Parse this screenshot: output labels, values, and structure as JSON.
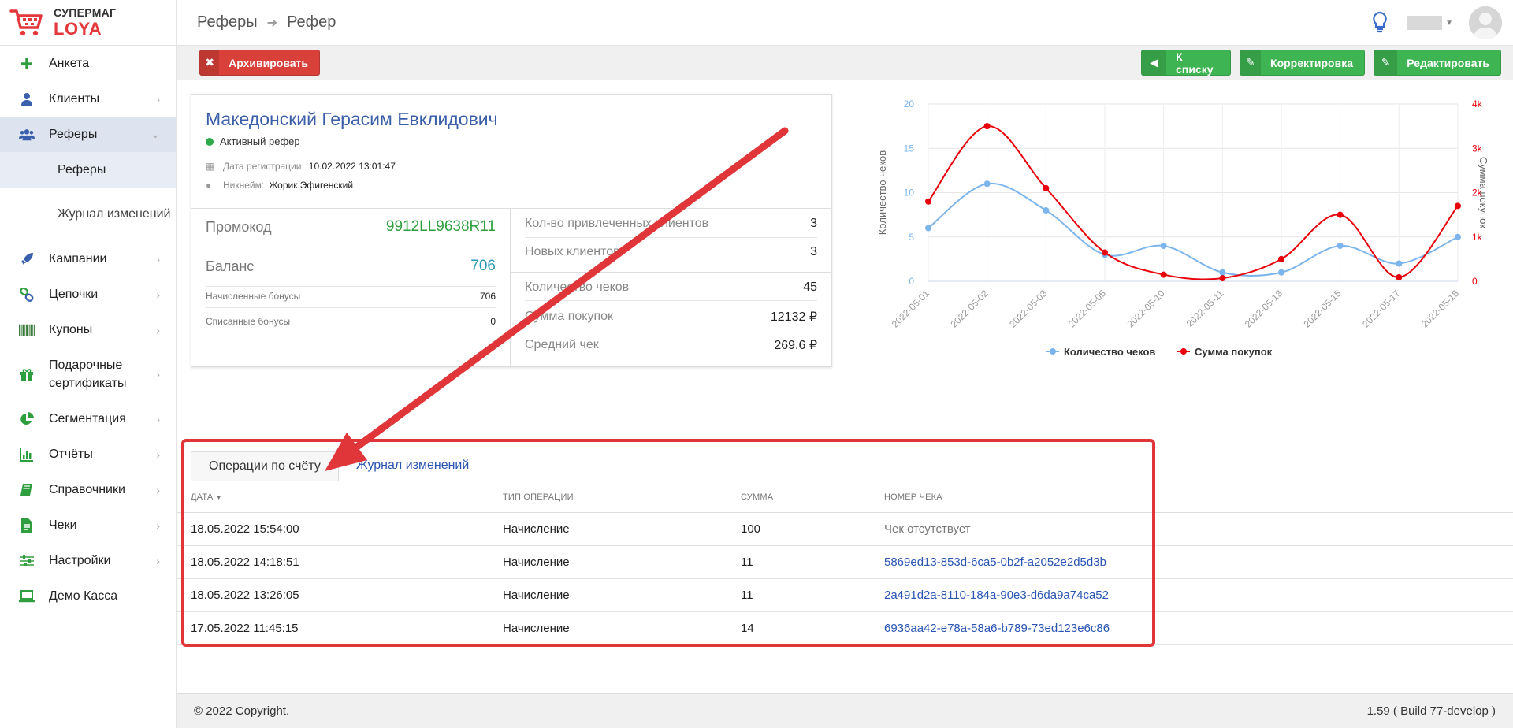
{
  "app": {
    "logo_top": "СУПЕРМАГ",
    "logo_bottom": "LOYA"
  },
  "breadcrumb": {
    "parent": "Реферы",
    "current": "Рефер"
  },
  "sidebar": {
    "items": [
      {
        "label": "Анкета",
        "icon": "plus-icon"
      },
      {
        "label": "Клиенты",
        "icon": "user-icon"
      },
      {
        "label": "Реферы",
        "icon": "users-icon"
      },
      {
        "label": "Кампании",
        "icon": "rocket-icon"
      },
      {
        "label": "Цепочки",
        "icon": "chain-icon"
      },
      {
        "label": "Купоны",
        "icon": "barcode-icon"
      },
      {
        "label": "Подарочные сертификаты",
        "icon": "gift-icon"
      },
      {
        "label": "Сегментация",
        "icon": "pie-icon"
      },
      {
        "label": "Отчёты",
        "icon": "bars-icon"
      },
      {
        "label": "Справочники",
        "icon": "book-icon"
      },
      {
        "label": "Чеки",
        "icon": "receipt-icon"
      },
      {
        "label": "Настройки",
        "icon": "sliders-icon"
      },
      {
        "label": "Демо Касса",
        "icon": "laptop-icon"
      }
    ],
    "subitems": [
      {
        "label": "Реферы"
      },
      {
        "label": "Журнал изменений"
      }
    ]
  },
  "actions": {
    "archive": "Архивировать",
    "to_list": "К списку",
    "correction": "Корректировка",
    "edit": "Редактировать"
  },
  "profile": {
    "name": "Македонский Герасим Евклидович",
    "status": "Активный рефер",
    "reg_label": "Дата регистрации:",
    "reg_value": "10.02.2022 13:01:47",
    "nick_label": "Никнейм:",
    "nick_value": "Жорик Эфигенский",
    "promo_label": "Промокод",
    "promo_value": "9912LL9638R11",
    "balance_label": "Баланс",
    "balance_value": "706",
    "accrued_label": "Начисленные бонусы",
    "accrued_value": "706",
    "spent_label": "Списанные бонусы",
    "spent_value": "0",
    "attracted_label": "Кол-во привлеченных клиентов",
    "attracted_value": "3",
    "new_label": "Новых клиентов",
    "new_value": "3",
    "checks_label": "Количество чеков",
    "checks_value": "45",
    "sum_label": "Сумма покупок",
    "sum_value": "12132 ₽",
    "avg_label": "Средний чек",
    "avg_value": "269.6 ₽",
    "colors": {
      "promo": "#2e9e3e",
      "balance": "#2a9bb7"
    }
  },
  "chart_data": {
    "type": "line",
    "categories": [
      "2022-05-01",
      "2022-05-02",
      "2022-05-03",
      "2022-05-05",
      "2022-05-10",
      "2022-05-11",
      "2022-05-13",
      "2022-05-15",
      "2022-05-17",
      "2022-05-18"
    ],
    "series": [
      {
        "name": "Количество чеков",
        "axis": "left",
        "color": "#7cb5ec",
        "values": [
          6,
          11,
          8,
          3,
          4,
          1,
          1,
          4,
          2,
          5
        ]
      },
      {
        "name": "Сумма покупок",
        "axis": "right",
        "color": "#e8000b",
        "values": [
          1800,
          3500,
          2100,
          650,
          150,
          70,
          500,
          1500,
          90,
          1700
        ]
      }
    ],
    "ylabel_left": "Количество чеков",
    "ylabel_right": "Сумма покупок",
    "ylim_left": [
      0,
      20
    ],
    "yticks_left": [
      "0",
      "5",
      "10",
      "15",
      "20"
    ],
    "ylim_right": [
      0,
      4000
    ],
    "yticks_right": [
      "0",
      "1k",
      "2k",
      "3k",
      "4k"
    ],
    "legend": "bottom",
    "grid": true
  },
  "tabs": [
    {
      "label": "Операции по счёту"
    },
    {
      "label": "Журнал изменений"
    }
  ],
  "table": {
    "headers": [
      "ДАТА",
      "ТИП ОПЕРАЦИИ",
      "СУММА",
      "НОМЕР ЧЕКА"
    ],
    "rows": [
      {
        "date": "18.05.2022 15:54:00",
        "type": "Начисление",
        "sum": "100",
        "check": "Чек отсутствует"
      },
      {
        "date": "18.05.2022 14:18:51",
        "type": "Начисление",
        "sum": "11",
        "check": "5869ed13-853d-6ca5-0b2f-a2052e2d5d3b"
      },
      {
        "date": "18.05.2022 13:26:05",
        "type": "Начисление",
        "sum": "11",
        "check": "2a491d2a-8110-184a-90e3-d6da9a74ca52"
      },
      {
        "date": "17.05.2022 11:45:15",
        "type": "Начисление",
        "sum": "14",
        "check": "6936aa42-e78a-58a6-b789-73ed123e6c86"
      }
    ]
  },
  "footer": {
    "copyright": "© 2022 Copyright.",
    "version": "1.59 ( Build 77-develop )"
  }
}
